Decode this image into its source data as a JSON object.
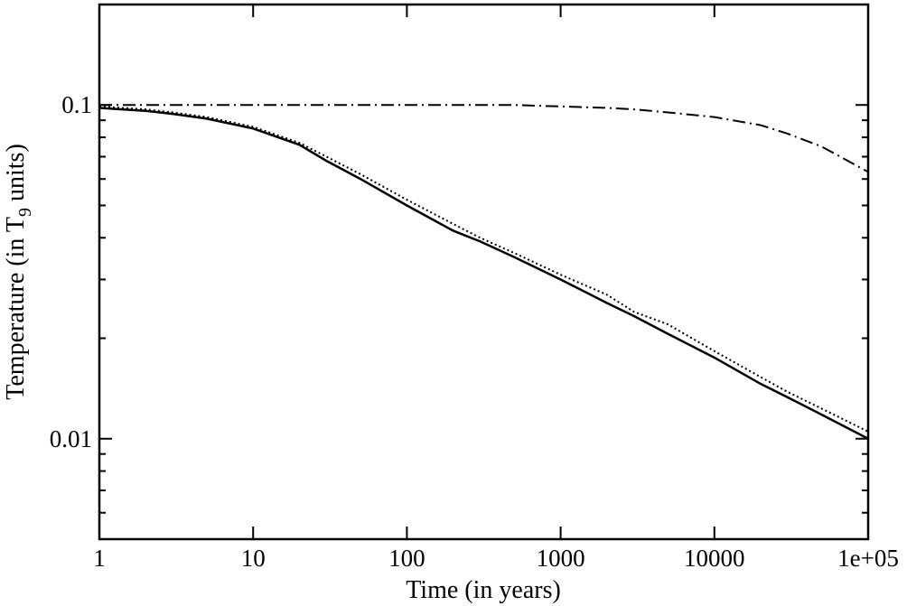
{
  "chart_data": {
    "type": "line",
    "xlabel": "Time (in years)",
    "ylabel": [
      "Temperature (in T",
      "9",
      " units)"
    ],
    "x": [
      1,
      2,
      3,
      5,
      10,
      20,
      30,
      50,
      100,
      200,
      300,
      500,
      1000,
      2000,
      3000,
      5000,
      10000,
      20000,
      30000,
      50000,
      100000
    ],
    "series": [
      {
        "color": "#000000",
        "style": "solid",
        "values": [
          0.098,
          0.096,
          0.094,
          0.091,
          0.085,
          0.076,
          0.068,
          0.06,
          0.05,
          0.042,
          0.039,
          0.035,
          0.03,
          0.0255,
          0.0233,
          0.0206,
          0.0175,
          0.0146,
          0.0133,
          0.0118,
          0.01
        ]
      },
      {
        "color": "#000000",
        "style": "dotted",
        "values": [
          0.099,
          0.097,
          0.095,
          0.092,
          0.086,
          0.077,
          0.07,
          0.062,
          0.052,
          0.044,
          0.04,
          0.036,
          0.031,
          0.027,
          0.024,
          0.022,
          0.0183,
          0.0153,
          0.0138,
          0.0123,
          0.0105
        ]
      },
      {
        "color": "#000000",
        "style": "dashdot",
        "values": [
          0.1,
          0.1,
          0.1,
          0.1,
          0.1,
          0.1,
          0.1,
          0.1,
          0.1,
          0.1,
          0.1,
          0.1,
          0.099,
          0.098,
          0.097,
          0.095,
          0.092,
          0.087,
          0.082,
          0.075,
          0.063
        ]
      }
    ],
    "xscale": "log",
    "yscale": "log",
    "xlim": [
      1,
      100000
    ],
    "ylim": [
      0.005,
      0.2
    ],
    "xticks": [
      1,
      10,
      100,
      1000,
      10000,
      {
        "value": 100000,
        "label": "1e+05"
      }
    ],
    "yticks": [
      0.01,
      0.1
    ],
    "yminorticks": [
      0.006,
      0.007,
      0.008,
      0.009,
      0.02,
      0.03,
      0.04,
      0.05,
      0.06,
      0.07,
      0.08,
      0.09
    ],
    "grid": false
  }
}
